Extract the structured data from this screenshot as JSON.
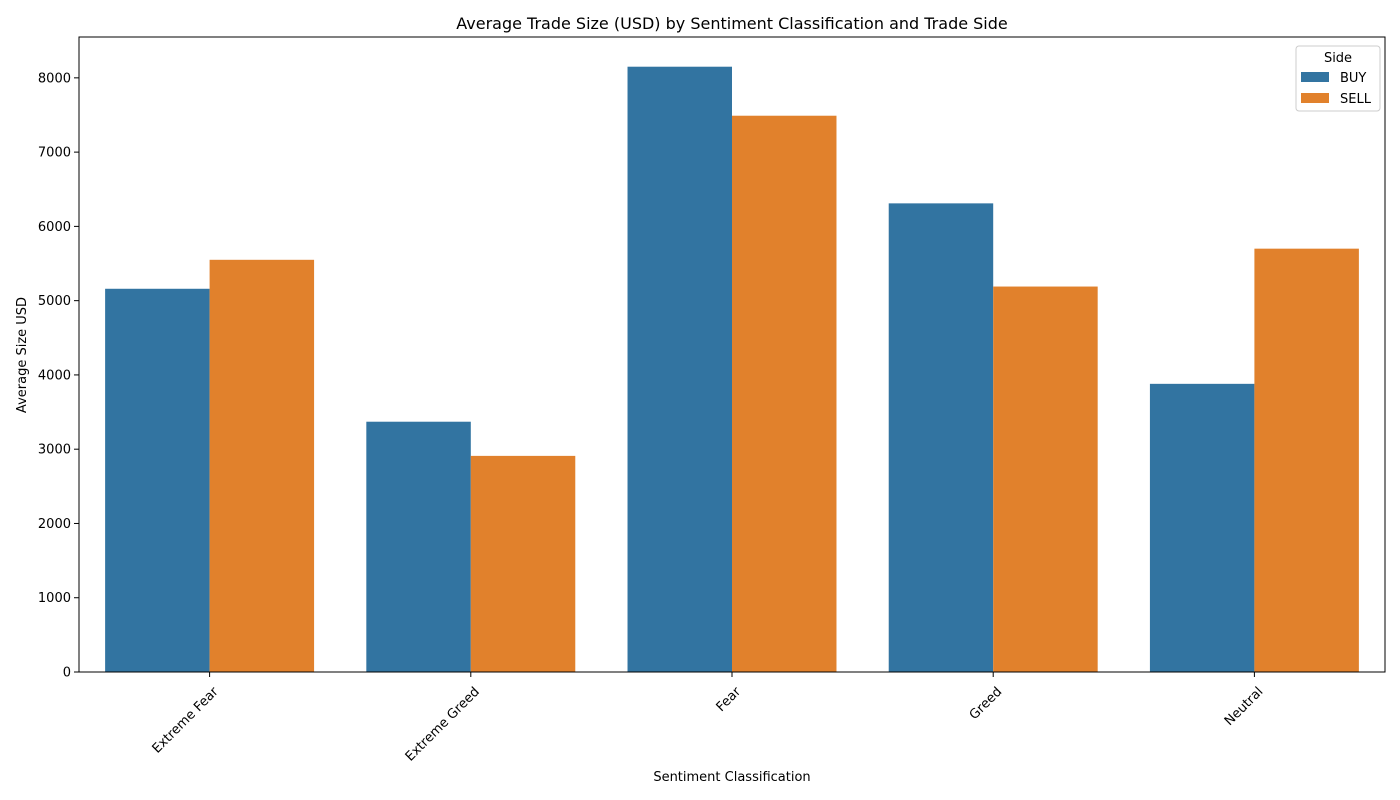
{
  "chart_data": {
    "type": "bar",
    "title": "Average Trade Size (USD) by Sentiment Classification and Trade Side",
    "xlabel": "Sentiment Classification",
    "ylabel": "Average Size USD",
    "categories": [
      "Extreme Fear",
      "Extreme Greed",
      "Fear",
      "Greed",
      "Neutral"
    ],
    "series": [
      {
        "name": "BUY",
        "color": "#3274a1",
        "values": [
          5160,
          3370,
          8150,
          6310,
          3880
        ]
      },
      {
        "name": "SELL",
        "color": "#e1812c",
        "values": [
          5550,
          2910,
          7490,
          5190,
          5700
        ]
      }
    ],
    "ylim": [
      0,
      8550
    ],
    "yticks": [
      0,
      1000,
      2000,
      3000,
      4000,
      5000,
      6000,
      7000,
      8000
    ],
    "ytick_labels": [
      "0",
      "1000",
      "2000",
      "3000",
      "4000",
      "5000",
      "6000",
      "7000",
      "8000"
    ],
    "grid": false,
    "legend": {
      "title": "Side",
      "placement": "top-right"
    }
  }
}
